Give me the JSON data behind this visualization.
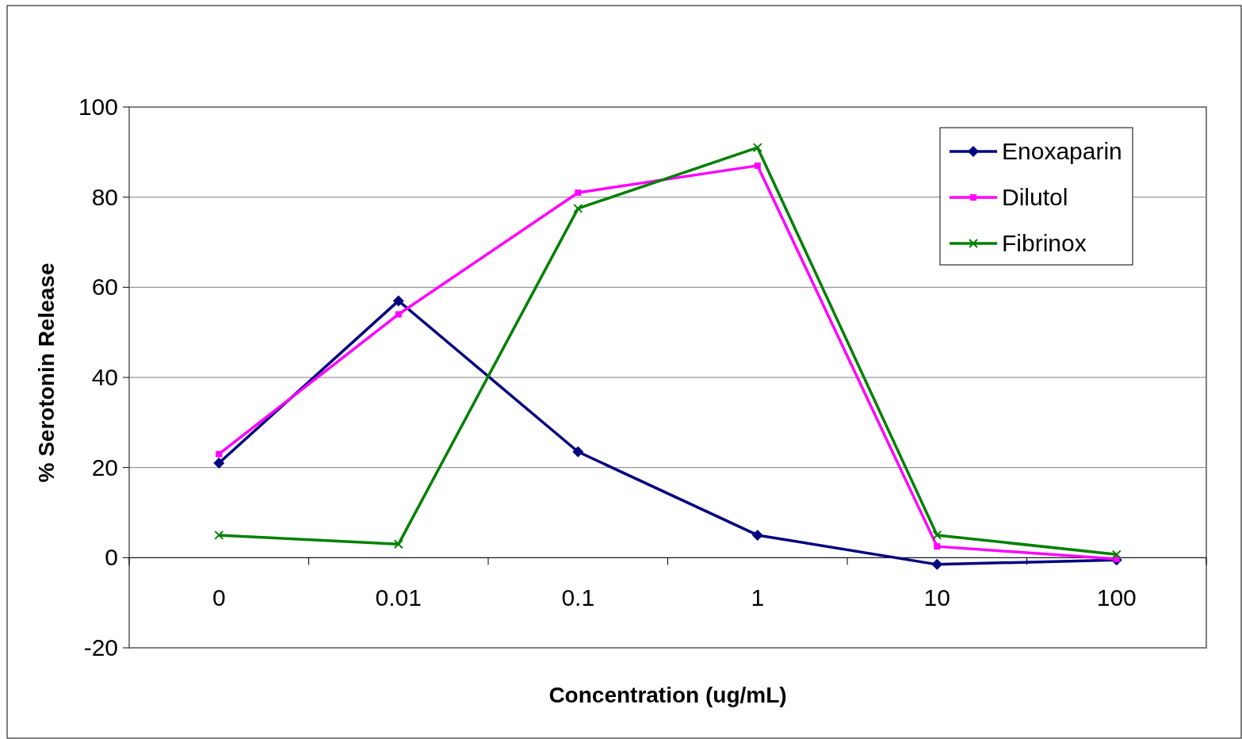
{
  "chart_data": {
    "type": "line",
    "xlabel": "Concentration (ug/mL)",
    "ylabel": "% Serotonin Release",
    "categories": [
      "0",
      "0.01",
      "0.1",
      "1",
      "10",
      "100"
    ],
    "series": [
      {
        "name": "Enoxaparin",
        "color": "#000080",
        "marker": "diamond",
        "values": [
          21,
          57,
          23.5,
          5,
          -1.5,
          -0.5
        ]
      },
      {
        "name": "Dilutol",
        "color": "#ff00ff",
        "marker": "square",
        "values": [
          23,
          54,
          81,
          87,
          2.5,
          -0.3
        ]
      },
      {
        "name": "Fibrinox",
        "color": "#008000",
        "marker": "cross",
        "values": [
          5,
          3,
          77.5,
          91,
          5,
          0.7
        ]
      }
    ],
    "ylim": [
      -20,
      100
    ],
    "yticks": [
      -20,
      0,
      20,
      40,
      60,
      80,
      100
    ],
    "grid": "y",
    "legend": "top right"
  }
}
